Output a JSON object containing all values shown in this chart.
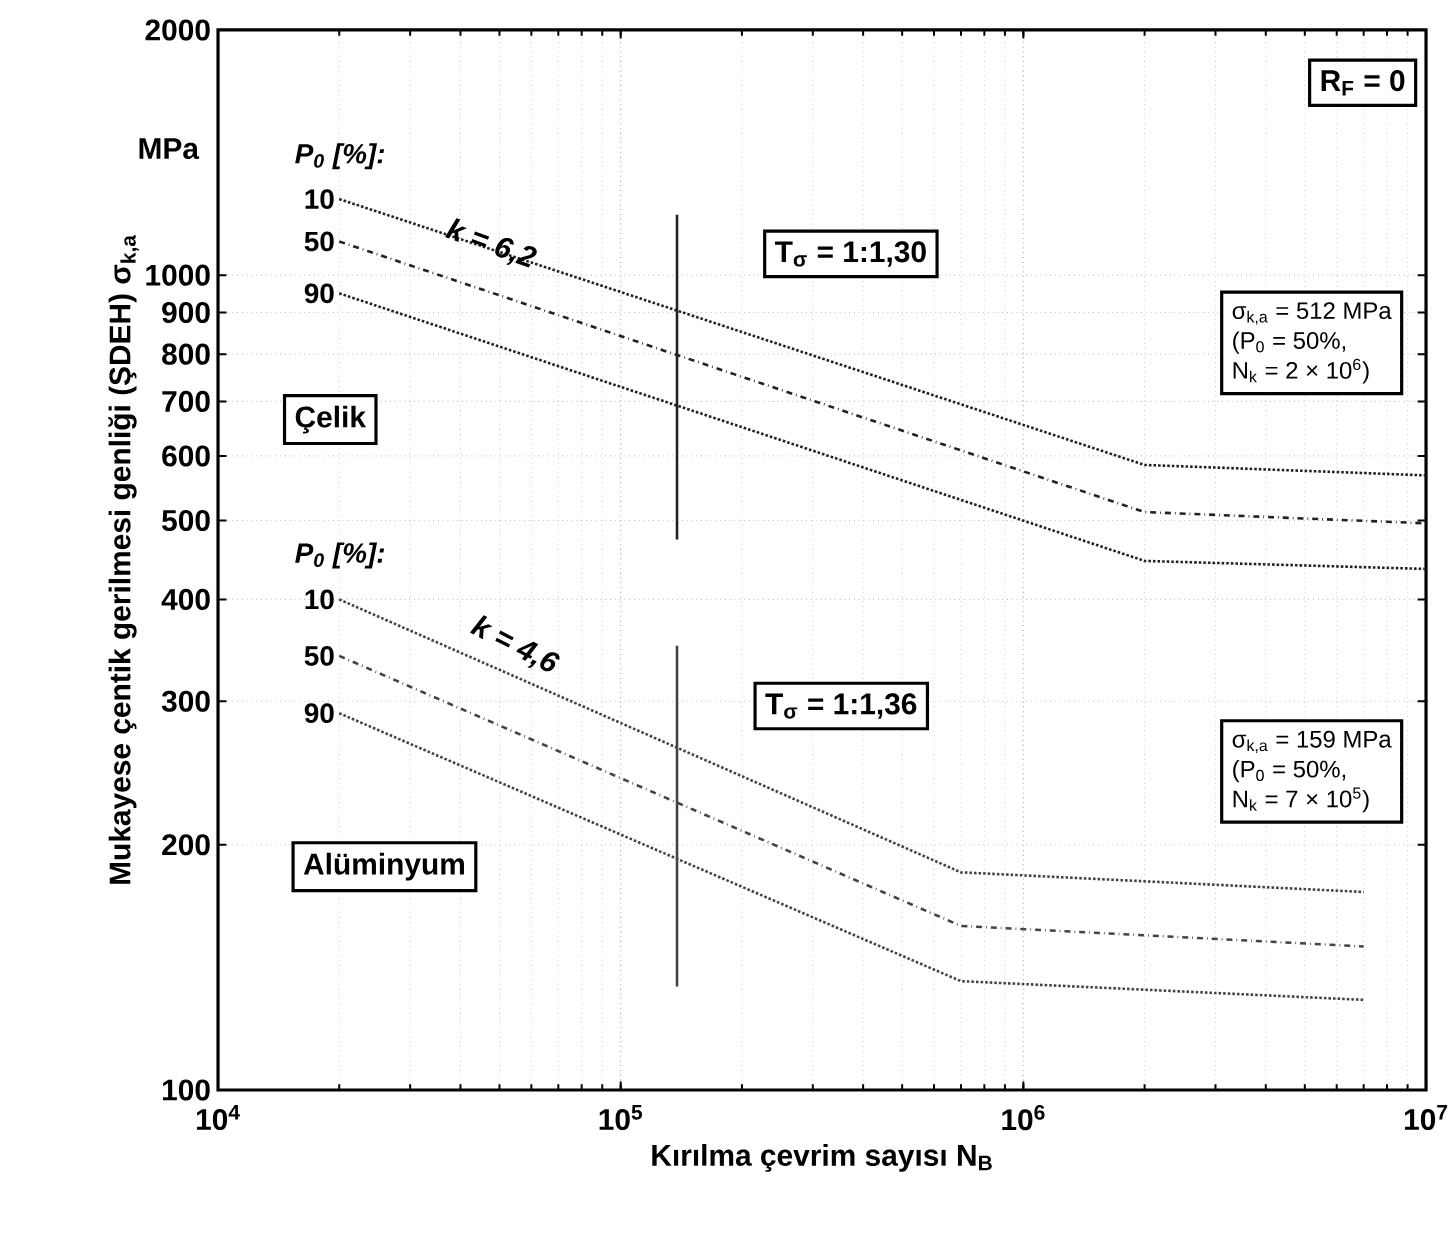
{
  "chart_data": {
    "type": "line",
    "xlabel": "Kırılma çevrim sayısı N$_{B}$",
    "ylabel": "Mukayese çentik gerilmesi genliği (ŞDEH) σ$_{k,a}$",
    "log": "xy",
    "grid": true,
    "xlim": [
      10000,
      10000000
    ],
    "ylim": [
      100,
      2000
    ],
    "xticks": [
      {
        "value": 10000,
        "label": "10$^{4}$"
      },
      {
        "value": 100000,
        "label": "10$^{5}$"
      },
      {
        "value": 1000000,
        "label": "10$^{6}$"
      },
      {
        "value": 10000000,
        "label": "10$^{7}$"
      }
    ],
    "yticks": [
      100,
      200,
      300,
      400,
      500,
      600,
      700,
      800,
      900,
      1000,
      2000
    ],
    "series": [
      {
        "name": "10",
        "color": "#222222",
        "line_style": "dotted",
        "x": [
          20000,
          2000000,
          10000000
        ],
        "values": [
          1240,
          585,
          568
        ]
      },
      {
        "name": "50",
        "color": "#222222",
        "line_style": "dashdot",
        "x": [
          20000,
          2000000,
          10000000
        ],
        "values": [
          1100,
          512,
          496
        ]
      },
      {
        "name": "90",
        "color": "#222222",
        "line_style": "dotted",
        "x": [
          20000,
          2000000,
          10000000
        ],
        "values": [
          950,
          446,
          436
        ]
      },
      {
        "name": "10",
        "color": "#444444",
        "line_style": "dotted",
        "x": [
          20000,
          700000,
          7000000
        ],
        "values": [
          400,
          185,
          175
        ]
      },
      {
        "name": "50",
        "color": "#444444",
        "line_style": "dashdot",
        "x": [
          20000,
          700000,
          7000000
        ],
        "values": [
          341,
          159,
          150
        ]
      },
      {
        "name": "90",
        "color": "#444444",
        "line_style": "dotted",
        "x": [
          20000,
          700000,
          7000000
        ],
        "values": [
          290,
          136,
          129
        ]
      },
      {
        "color": "#222222",
        "line_style": "solid",
        "x": [
          138000,
          138000
        ],
        "values": [
          1186,
          474
        ]
      },
      {
        "color": "#444444",
        "line_style": "solid",
        "x": [
          138000,
          138000
        ],
        "values": [
          351,
          134
        ]
      }
    ],
    "annotations": [
      "MPa",
      "P$_{0}$ [%]:",
      "k = 6,2",
      "T$_{σ}$ = 1:1,30",
      "R$_{F}$ = 0",
      "σ$_{k,a}$ = 512 MPa",
      "(P$_{0}$ = 50%,",
      "N$_{k}$ = 2 × 10$^{6}$)",
      "Çelik",
      "P$_{0}$ [%]:",
      "k = 4,6",
      "T$_{σ}$ = 1:1,36",
      "σ$_{k,a}$ = 159 MPa",
      "(P$_{0}$ = 50%,",
      "N$_{k}$ = 7 × 10$^{5}$)",
      "Alüminyum"
    ]
  }
}
